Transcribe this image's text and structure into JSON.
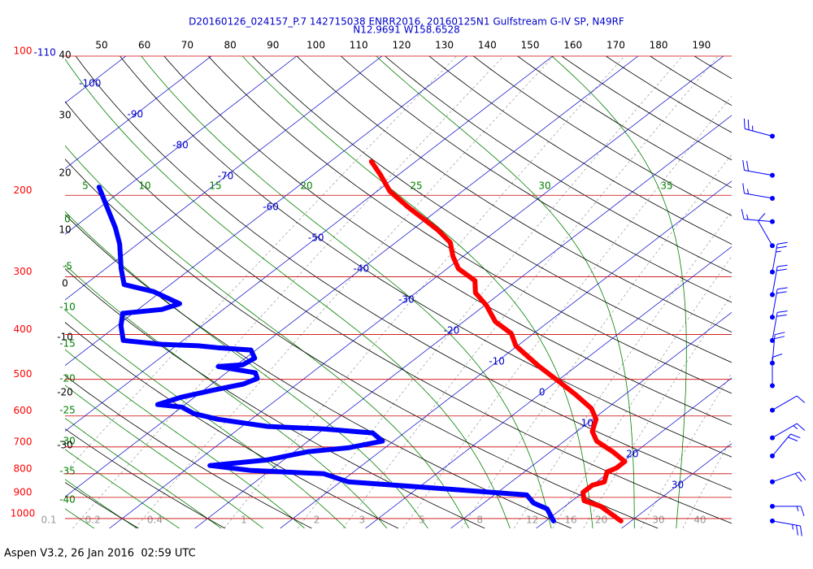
{
  "chart_data": {
    "type": "skewt",
    "title": "D20160126_024157_P.7 142715038 ENRR2016, 20160125N1 Gulfstream G-IV SP, N49RF",
    "subtitle": "N12.9691 W158.6528",
    "footer": "Aspen V3.2, 26 Jan 2016  02:59 UTC",
    "y_scale": "log",
    "ylim": [
      1050,
      100
    ],
    "yticks": [
      100,
      200,
      300,
      400,
      500,
      600,
      700,
      800,
      900,
      1000
    ],
    "xlim": [
      -35.2,
      42.9
    ],
    "xticks": [
      -110,
      -100,
      -90,
      -80,
      -70,
      -60,
      -50,
      -40,
      -30,
      -20,
      -10,
      0,
      10,
      20,
      30
    ],
    "theta_ticks_top": [
      50,
      60,
      70,
      80,
      90,
      100,
      110,
      120,
      130,
      140,
      150,
      160,
      170,
      180,
      190
    ],
    "theta_ticks_left": [
      40,
      30,
      20,
      10,
      0,
      -10,
      -20,
      -30
    ],
    "moist_ticks_top": [
      5,
      10,
      15,
      20,
      25,
      30,
      35
    ],
    "moist_ticks_left": [
      0,
      -5,
      -10,
      -15,
      -20,
      -25,
      -30,
      -35,
      -40
    ],
    "mixing_ticks": [
      0.1,
      0.2,
      0.4,
      1,
      2,
      3,
      5,
      8,
      12,
      16,
      20,
      30,
      40
    ],
    "series": [
      {
        "color": "#ff0000",
        "pressure": [
          169,
          181,
          196,
          213,
          224,
          238,
          253,
          271,
          288,
          306,
          325,
          346,
          375,
          398,
          423,
          446,
          469,
          508,
          540,
          578,
          610,
          648,
          680,
          717,
          753,
          778,
          793,
          833,
          847,
          878,
          915,
          941,
          1012
        ],
        "temperature": [
          -55.2,
          -52.0,
          -48.5,
          -43.7,
          -40.6,
          -36.9,
          -33.6,
          -31.2,
          -28.7,
          -24.9,
          -23.0,
          -19.8,
          -16.3,
          -12.6,
          -10.2,
          -7.2,
          -4.3,
          0.6,
          4.3,
          8.2,
          10.4,
          11.8,
          13.8,
          17.3,
          20.2,
          20.2,
          19.7,
          20.9,
          20.0,
          20.0,
          21.4,
          24.2,
          28.8
        ]
      },
      {
        "color": "#0000ff",
        "pressure": [
          192,
          208,
          235,
          255,
          288,
          312,
          323,
          343,
          353,
          360,
          383,
          412,
          420,
          423,
          427,
          432,
          450,
          465,
          469,
          484,
          498,
          512,
          529,
          546,
          567,
          574,
          593,
          610,
          632,
          640,
          653,
          680,
          703,
          717,
          747,
          768,
          787,
          800,
          833,
          860,
          889,
          925,
          953,
          1012
        ],
        "temperature": [
          -83.2,
          -80.0,
          -75.1,
          -72.1,
          -68.2,
          -65.4,
          -60.9,
          -56.0,
          -57.2,
          -61.2,
          -59.5,
          -57.0,
          -51.9,
          -47.4,
          -44.9,
          -40.6,
          -38.9,
          -39.3,
          -41.9,
          -36.6,
          -35.5,
          -36.3,
          -39.1,
          -41.5,
          -43.2,
          -40.0,
          -37.6,
          -33.9,
          -27.0,
          -20.0,
          -13.7,
          -11.3,
          -14.3,
          -18.4,
          -22.0,
          -27.8,
          -22.2,
          -13.2,
          -9.1,
          2.4,
          13.8,
          15.8,
          18.3,
          20.9
        ]
      }
    ],
    "wind": {
      "color": "#0000ff",
      "pressure": [
        149,
        181,
        203,
        228,
        257,
        293,
        328,
        367,
        412,
        461,
        516,
        583,
        669,
        732,
        833,
        941,
        1012
      ],
      "direction": [
        285,
        280,
        280,
        275,
        330,
        10,
        10,
        10,
        10,
        5,
        0,
        60,
        60,
        40,
        70,
        90,
        100
      ],
      "speed": [
        25,
        20,
        15,
        15,
        10,
        25,
        20,
        20,
        20,
        20,
        10,
        10,
        15,
        20,
        20,
        15,
        25
      ]
    }
  }
}
